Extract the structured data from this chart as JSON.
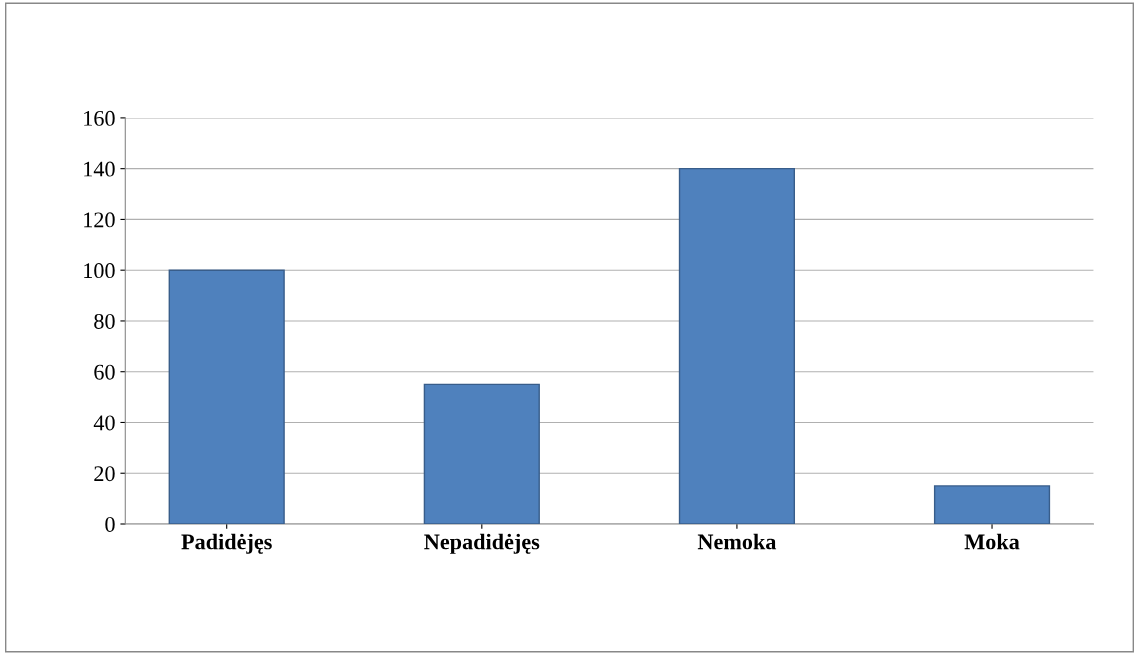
{
  "chart_data": {
    "type": "bar",
    "categories": [
      "Padidėjęs",
      "Nepadidėjęs",
      "Nemoka",
      "Moka"
    ],
    "values": [
      100,
      55,
      140,
      15
    ],
    "color": "#4f81bd",
    "ylim": [
      0,
      160
    ],
    "yticks": [
      0,
      20,
      40,
      60,
      80,
      100,
      120,
      140,
      160
    ],
    "grid": "y"
  }
}
